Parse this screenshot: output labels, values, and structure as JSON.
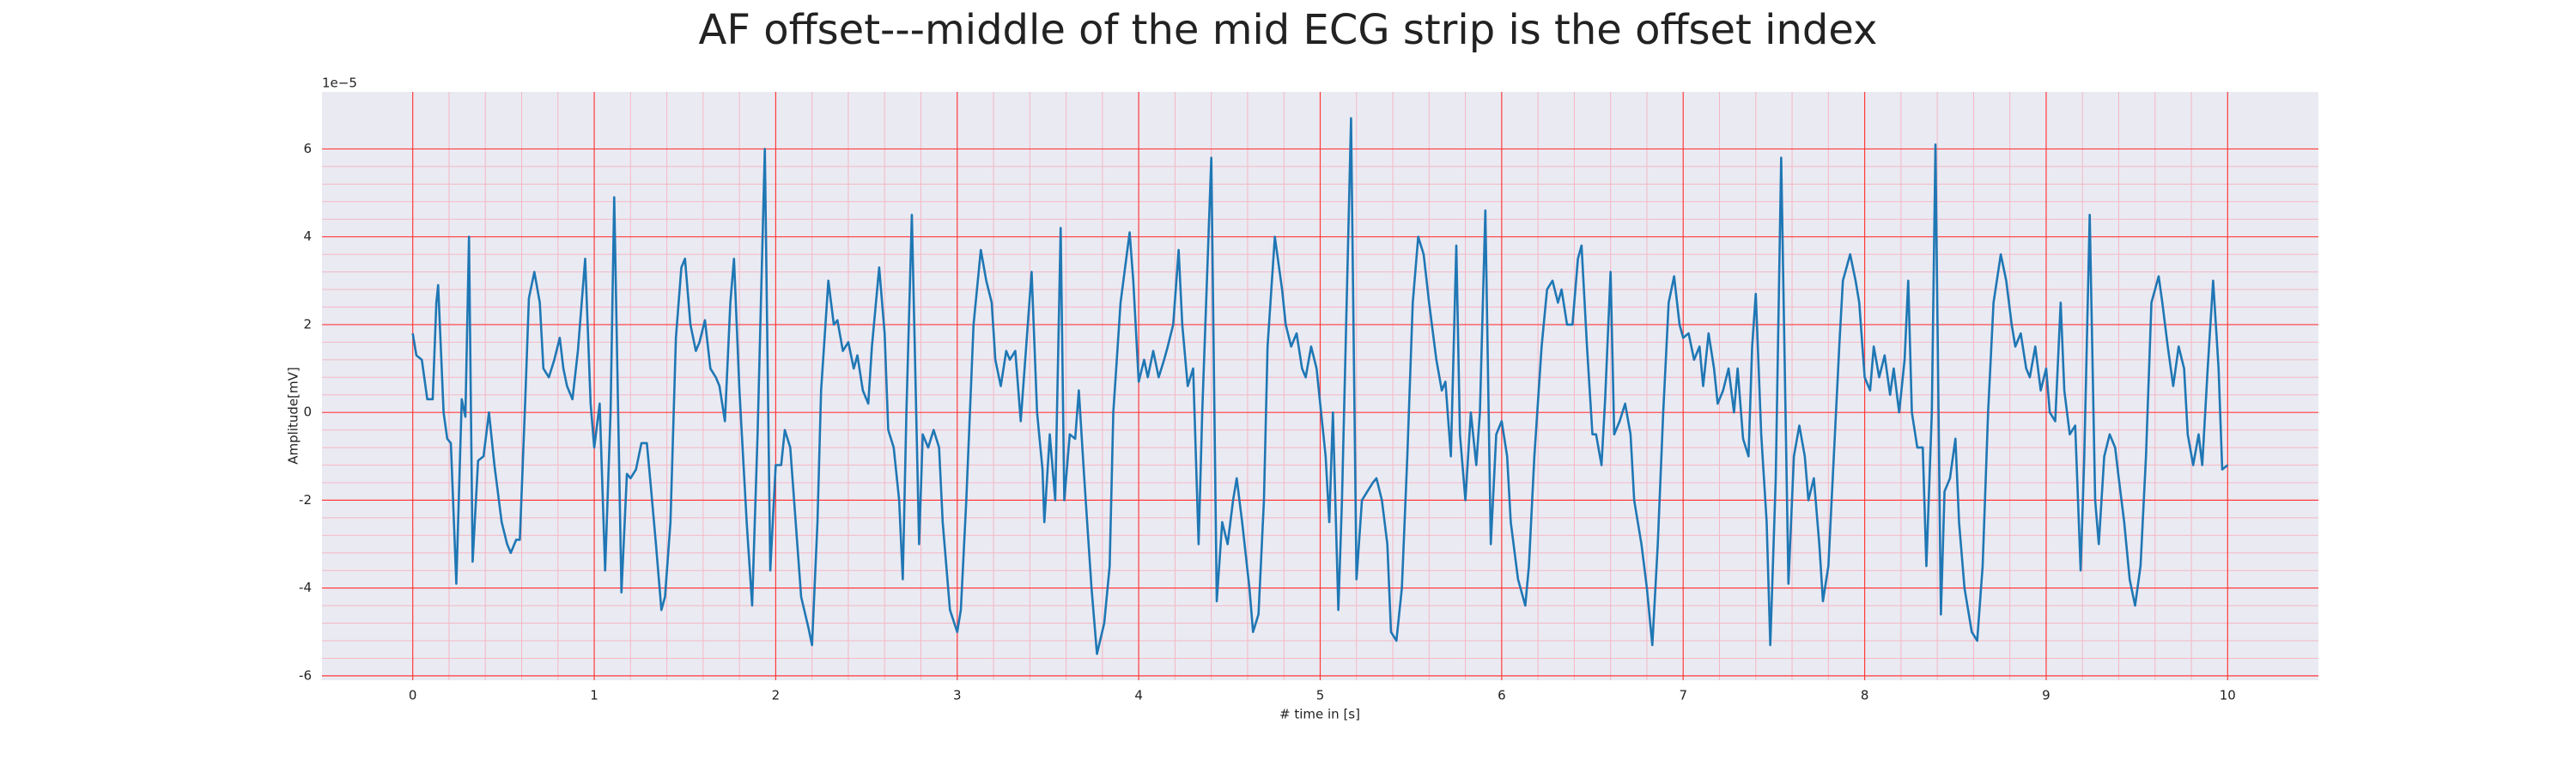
{
  "chart_data": {
    "type": "line",
    "title": "AF offset---middle of the mid ECG strip is the offset index",
    "xlabel": "# time in [s]",
    "ylabel": "Amplitude[mV]",
    "y_offset_label": "1e−5",
    "xlim": [
      -0.5,
      10.5
    ],
    "xticks": [
      0,
      1,
      2,
      3,
      4,
      5,
      6,
      7,
      8,
      9,
      10
    ],
    "ylim": [
      -6.1,
      7.3
    ],
    "yticks": [
      -6,
      -4,
      -2,
      0,
      2,
      4,
      6
    ],
    "grid": true,
    "grid_color": "#ff3b3b",
    "minor_grid": true,
    "minor_grid_color": "#f4b8c4",
    "background": "#eaeaf2",
    "x": [
      0,
      0.02,
      0.05,
      0.08,
      0.11,
      0.13,
      0.14,
      0.17,
      0.19,
      0.21,
      0.24,
      0.27,
      0.29,
      0.31,
      0.33,
      0.36,
      0.39,
      0.42,
      0.45,
      0.49,
      0.52,
      0.54,
      0.57,
      0.59,
      0.62,
      0.64,
      0.67,
      0.7,
      0.72,
      0.75,
      0.78,
      0.81,
      0.83,
      0.85,
      0.88,
      0.91,
      0.95,
      0.98,
      1.0,
      1.03,
      1.06,
      1.09,
      1.11,
      1.15,
      1.18,
      1.2,
      1.23,
      1.26,
      1.29,
      1.31,
      1.34,
      1.37,
      1.39,
      1.42,
      1.45,
      1.48,
      1.5,
      1.53,
      1.56,
      1.58,
      1.61,
      1.64,
      1.67,
      1.69,
      1.72,
      1.75,
      1.77,
      1.8,
      1.84,
      1.87,
      1.9,
      1.94,
      1.97,
      2.0,
      2.03,
      2.05,
      2.08,
      2.11,
      2.14,
      2.18,
      2.2,
      2.23,
      2.25,
      2.29,
      2.32,
      2.34,
      2.37,
      2.4,
      2.43,
      2.45,
      2.48,
      2.51,
      2.53,
      2.57,
      2.6,
      2.62,
      2.65,
      2.68,
      2.7,
      2.72,
      2.75,
      2.79,
      2.81,
      2.84,
      2.87,
      2.9,
      2.92,
      2.96,
      3.0,
      3.02,
      3.05,
      3.09,
      3.13,
      3.16,
      3.19,
      3.21,
      3.24,
      3.27,
      3.29,
      3.32,
      3.35,
      3.38,
      3.41,
      3.44,
      3.47,
      3.48,
      3.51,
      3.54,
      3.57,
      3.59,
      3.62,
      3.65,
      3.67,
      3.7,
      3.74,
      3.77,
      3.81,
      3.84,
      3.86,
      3.9,
      3.95,
      3.97,
      4.0,
      4.03,
      4.05,
      4.08,
      4.11,
      4.14,
      4.16,
      4.19,
      4.22,
      4.24,
      4.27,
      4.3,
      4.33,
      4.35,
      4.4,
      4.43,
      4.46,
      4.49,
      4.52,
      4.54,
      4.57,
      4.61,
      4.63,
      4.66,
      4.69,
      4.71,
      4.75,
      4.79,
      4.81,
      4.84,
      4.87,
      4.9,
      4.92,
      4.95,
      4.98,
      5.0,
      5.03,
      5.05,
      5.07,
      5.1,
      5.12,
      5.17,
      5.2,
      5.23,
      5.26,
      5.29,
      5.31,
      5.34,
      5.37,
      5.39,
      5.42,
      5.45,
      5.48,
      5.51,
      5.54,
      5.57,
      5.6,
      5.64,
      5.67,
      5.69,
      5.72,
      5.75,
      5.77,
      5.8,
      5.83,
      5.86,
      5.88,
      5.91,
      5.94,
      5.97,
      6.0,
      6.03,
      6.05,
      6.09,
      6.13,
      6.15,
      6.18,
      6.22,
      6.25,
      6.28,
      6.31,
      6.33,
      6.36,
      6.39,
      6.42,
      6.44,
      6.47,
      6.5,
      6.52,
      6.55,
      6.57,
      6.6,
      6.62,
      6.65,
      6.68,
      6.71,
      6.73,
      6.77,
      6.8,
      6.83,
      6.86,
      6.89,
      6.92,
      6.95,
      6.98,
      7.0,
      7.03,
      7.06,
      7.09,
      7.11,
      7.14,
      7.17,
      7.19,
      7.22,
      7.25,
      7.28,
      7.3,
      7.33,
      7.36,
      7.38,
      7.4,
      7.43,
      7.46,
      7.48,
      7.51,
      7.54,
      7.58,
      7.61,
      7.64,
      7.67,
      7.69,
      7.72,
      7.75,
      7.77,
      7.8,
      7.83,
      7.86,
      7.88,
      7.92,
      7.95,
      7.97,
      8.0,
      8.03,
      8.05,
      8.08,
      8.11,
      8.14,
      8.16,
      8.19,
      8.22,
      8.24,
      8.26,
      8.29,
      8.32,
      8.34,
      8.37,
      8.39,
      8.42,
      8.44,
      8.47,
      8.5,
      8.52,
      8.55,
      8.59,
      8.62,
      8.65,
      8.68,
      8.71,
      8.75,
      8.78,
      8.81,
      8.83,
      8.86,
      8.89,
      8.91,
      8.94,
      8.97,
      9.0,
      9.02,
      9.05,
      9.08,
      9.1,
      9.13,
      9.16,
      9.19,
      9.21,
      9.24,
      9.27,
      9.29,
      9.32,
      9.35,
      9.38,
      9.4,
      9.43,
      9.46,
      9.49,
      9.52,
      9.55,
      9.58,
      9.62,
      9.64,
      9.67,
      9.7,
      9.73,
      9.76,
      9.78,
      9.81,
      9.84,
      9.86,
      9.89,
      9.92,
      9.95,
      9.97,
      10.0
    ],
    "series": [
      {
        "color": "#1f77b4",
        "values": [
          1.8,
          1.3,
          1.2,
          0.3,
          0.3,
          2.5,
          2.9,
          0.0,
          -0.6,
          -0.7,
          -3.9,
          0.3,
          -0.1,
          4.0,
          -3.4,
          -1.1,
          -1.0,
          0.0,
          -1.2,
          -2.5,
          -3.0,
          -3.2,
          -2.9,
          -2.9,
          0.3,
          2.6,
          3.2,
          2.5,
          1.0,
          0.8,
          1.2,
          1.7,
          1.0,
          0.6,
          0.3,
          1.4,
          3.5,
          0.2,
          -0.8,
          0.2,
          -3.6,
          0.0,
          4.9,
          -4.1,
          -1.4,
          -1.5,
          -1.3,
          -0.7,
          -0.7,
          -1.6,
          -3.0,
          -4.5,
          -4.2,
          -2.5,
          1.7,
          3.3,
          3.5,
          2.0,
          1.4,
          1.6,
          2.1,
          1.0,
          0.8,
          0.6,
          -0.2,
          2.5,
          3.5,
          0.5,
          -2.5,
          -4.4,
          -0.5,
          6.0,
          -3.6,
          -1.2,
          -1.2,
          -0.4,
          -0.8,
          -2.5,
          -4.2,
          -4.9,
          -5.3,
          -2.5,
          0.5,
          3.0,
          2.0,
          2.1,
          1.4,
          1.6,
          1.0,
          1.3,
          0.5,
          0.2,
          1.5,
          3.3,
          1.8,
          -0.4,
          -0.8,
          -2.0,
          -3.8,
          0.0,
          4.5,
          -3.0,
          -0.5,
          -0.8,
          -0.4,
          -0.8,
          -2.5,
          -4.5,
          -5.0,
          -4.5,
          -2.0,
          2.0,
          3.7,
          3.0,
          2.5,
          1.2,
          0.6,
          1.4,
          1.2,
          1.4,
          -0.2,
          1.5,
          3.2,
          0.0,
          -1.3,
          -2.5,
          -0.5,
          -2.0,
          4.2,
          -2.0,
          -0.5,
          -0.6,
          0.5,
          -1.5,
          -4.0,
          -5.5,
          -4.8,
          -3.5,
          0.0,
          2.5,
          4.1,
          3.0,
          0.7,
          1.2,
          0.8,
          1.4,
          0.8,
          1.2,
          1.5,
          2.0,
          3.7,
          2.0,
          0.6,
          1.0,
          -3.0,
          0.0,
          5.8,
          -4.3,
          -2.5,
          -3.0,
          -2.0,
          -1.5,
          -2.5,
          -4.0,
          -5.0,
          -4.6,
          -2.0,
          1.5,
          4.0,
          2.8,
          2.0,
          1.5,
          1.8,
          1.0,
          0.8,
          1.5,
          1.0,
          0.2,
          -1.0,
          -2.5,
          0.0,
          -4.5,
          -2.0,
          6.7,
          -3.8,
          -2.0,
          -1.8,
          -1.6,
          -1.5,
          -2.0,
          -3.0,
          -5.0,
          -5.2,
          -4.0,
          -1.0,
          2.5,
          4.0,
          3.6,
          2.5,
          1.2,
          0.5,
          0.7,
          -1.0,
          3.8,
          -0.5,
          -2.0,
          0.0,
          -1.2,
          0.0,
          4.6,
          -3.0,
          -0.5,
          -0.2,
          -1.0,
          -2.5,
          -3.8,
          -4.4,
          -3.5,
          -1.0,
          1.5,
          2.8,
          3.0,
          2.5,
          2.8,
          2.0,
          2.0,
          3.5,
          3.8,
          1.5,
          -0.5,
          -0.5,
          -1.2,
          0.3,
          3.2,
          -0.5,
          -0.2,
          0.2,
          -0.5,
          -2.0,
          -3.0,
          -4.0,
          -5.3,
          -3.0,
          0.0,
          2.5,
          3.1,
          2.0,
          1.7,
          1.8,
          1.2,
          1.5,
          0.6,
          1.8,
          1.0,
          0.2,
          0.5,
          1.0,
          0.0,
          1.0,
          -0.6,
          -1.0,
          1.5,
          2.7,
          -0.5,
          -2.5,
          -5.3,
          -1.5,
          5.8,
          -3.9,
          -1.0,
          -0.3,
          -1.0,
          -2.0,
          -1.5,
          -3.0,
          -4.3,
          -3.5,
          -1.0,
          1.5,
          3.0,
          3.6,
          3.0,
          2.5,
          0.8,
          0.5,
          1.5,
          0.8,
          1.3,
          0.4,
          1.0,
          0.0,
          1.2,
          3.0,
          0.0,
          -0.8,
          -0.8,
          -3.5,
          0.0,
          6.1,
          -4.6,
          -1.8,
          -1.5,
          -0.6,
          -2.5,
          -4.0,
          -5.0,
          -5.2,
          -3.5,
          0.0,
          2.5,
          3.6,
          3.0,
          2.0,
          1.5,
          1.8,
          1.0,
          0.8,
          1.5,
          0.5,
          1.0,
          0.0,
          -0.2,
          2.5,
          0.5,
          -0.5,
          -0.3,
          -3.6,
          -1.0,
          4.5,
          -2.0,
          -3.0,
          -1.0,
          -0.5,
          -0.8,
          -1.5,
          -2.5,
          -3.8,
          -4.4,
          -3.5,
          -1.0,
          2.5,
          3.1,
          2.5,
          1.5,
          0.6,
          1.5,
          1.0,
          -0.5,
          -1.2,
          -0.5,
          -1.2,
          1.0,
          3.0,
          1.0,
          -1.3,
          -1.2
        ]
      }
    ]
  }
}
